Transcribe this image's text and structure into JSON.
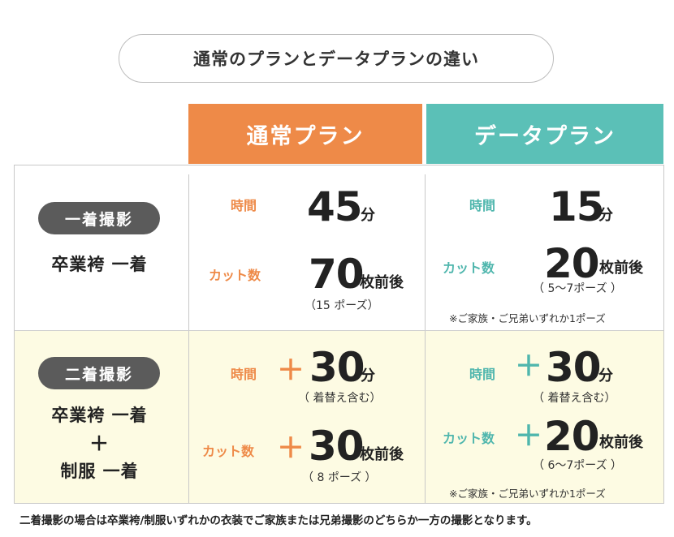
{
  "title": "通常のプランとデータプランの違い",
  "headers": {
    "normal": "通常プラン",
    "data": "データプラン"
  },
  "labels": {
    "time": "時間",
    "cuts": "カット数",
    "plus": "＋"
  },
  "row1": {
    "badge": "一着撮影",
    "description": "卒業袴 一着",
    "normal": {
      "time_value": "45",
      "time_unit": "分",
      "cuts_value": "70",
      "cuts_unit": "枚前後",
      "cuts_sub": "（15 ポーズ）"
    },
    "data": {
      "time_value": "15",
      "time_unit": "分",
      "cuts_value": "20",
      "cuts_unit": "枚前後",
      "cuts_sub": "（ 5〜7ポーズ ）",
      "note": "※ご家族・ご兄弟いずれか1ポーズ"
    }
  },
  "row2": {
    "badge": "二着撮影",
    "description_line1": "卒業袴 一着",
    "description_plus": "＋",
    "description_line2": "制服 一着",
    "normal": {
      "time_value": "30",
      "time_unit": "分",
      "time_sub": "（ 着替え含む）",
      "cuts_value": "30",
      "cuts_unit": "枚前後",
      "cuts_sub": "（ 8 ポーズ ）"
    },
    "data": {
      "time_value": "30",
      "time_unit": "分",
      "time_sub": "（ 着替え含む）",
      "cuts_value": "20",
      "cuts_unit": "枚前後",
      "cuts_sub": "（ 6〜7ポーズ ）",
      "note": "※ご家族・ご兄弟いずれか1ポーズ"
    }
  },
  "footer": "二着撮影の場合は卒業袴/制服いずれかの衣装でご家族または兄弟撮影のどちらか一方の撮影となります。",
  "colors": {
    "orange": "#ee8a48",
    "teal": "#5bc0b7",
    "badge": "#5b5b5b",
    "row2_bg": "#fdfbe3"
  }
}
